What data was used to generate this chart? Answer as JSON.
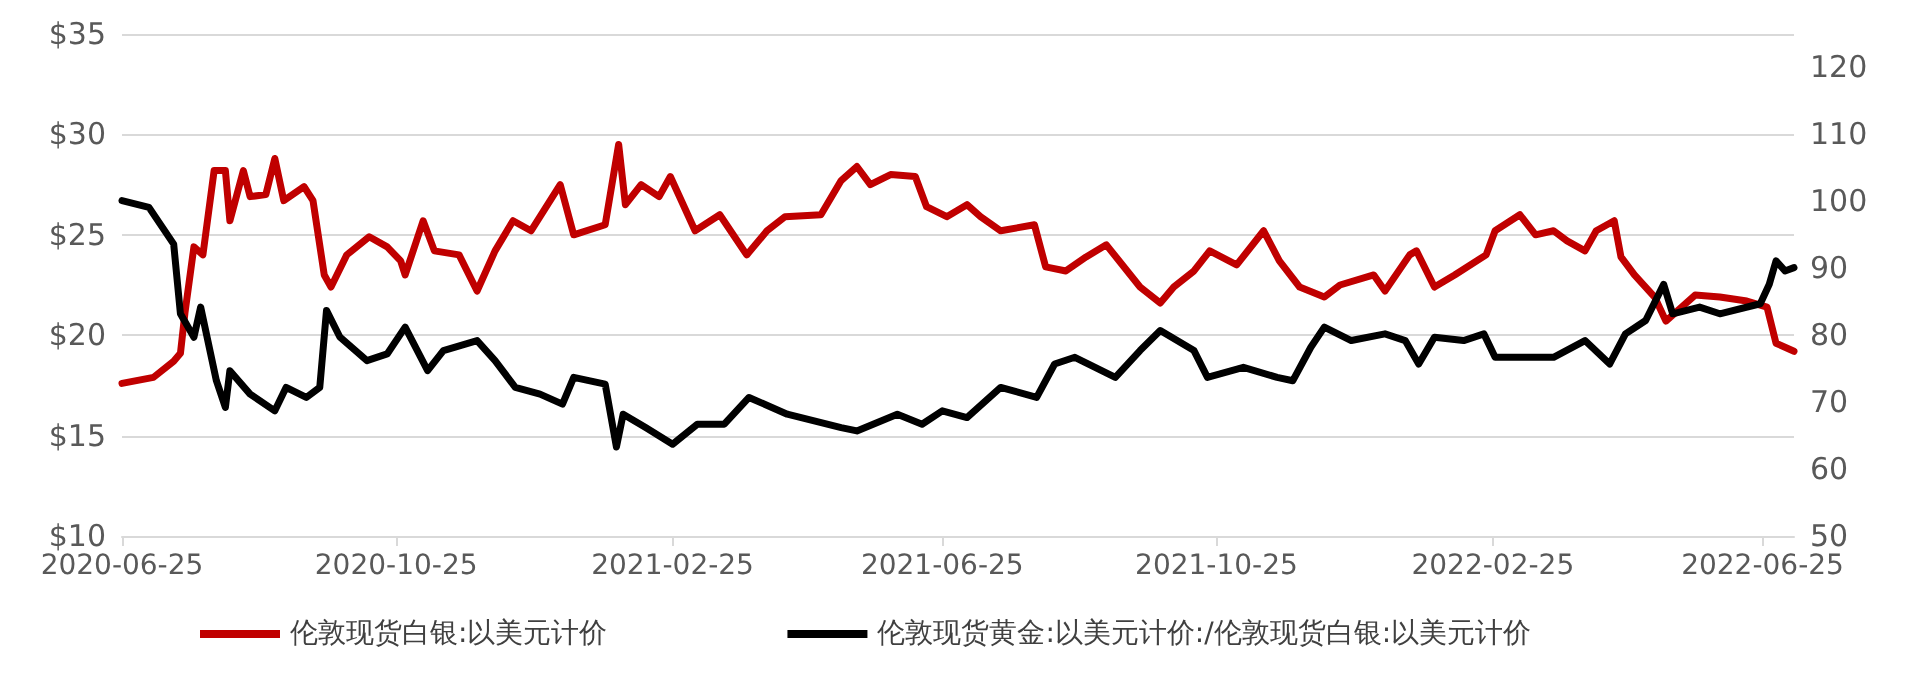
{
  "chart_data": {
    "type": "line",
    "x": [
      "2020-06-25",
      "2020-07-09",
      "2020-07-18",
      "2020-07-21",
      "2020-07-23",
      "2020-07-27",
      "2020-07-31",
      "2020-08-05",
      "2020-08-10",
      "2020-08-12",
      "2020-08-18",
      "2020-08-21",
      "2020-08-28",
      "2020-09-01",
      "2020-09-05",
      "2020-09-14",
      "2020-09-18",
      "2020-09-23",
      "2020-09-26",
      "2020-10-03",
      "2020-10-13",
      "2020-10-21",
      "2020-10-27",
      "2020-10-29",
      "2020-11-06",
      "2020-11-11",
      "2020-11-22",
      "2020-11-30",
      "2020-12-08",
      "2020-12-16",
      "2020-12-24",
      "2021-01-06",
      "2021-01-12",
      "2021-01-26",
      "2021-02-01",
      "2021-02-04",
      "2021-02-11",
      "2021-02-19",
      "2021-02-24",
      "2021-03-07",
      "2021-03-18",
      "2021-03-30",
      "2021-04-08",
      "2021-04-16",
      "2021-05-02",
      "2021-05-11",
      "2021-05-18",
      "2021-05-24",
      "2021-06-02",
      "2021-06-13",
      "2021-06-18",
      "2021-06-27",
      "2021-07-06",
      "2021-07-12",
      "2021-07-21",
      "2021-08-05",
      "2021-08-10",
      "2021-08-19",
      "2021-08-28",
      "2021-09-06",
      "2021-09-21",
      "2021-09-30",
      "2021-10-06",
      "2021-10-15",
      "2021-10-22",
      "2021-11-03",
      "2021-11-15",
      "2021-11-22",
      "2021-12-01",
      "2021-12-12",
      "2021-12-19",
      "2022-01-03",
      "2022-01-08",
      "2022-01-19",
      "2022-01-22",
      "2022-01-30",
      "2022-02-08",
      "2022-02-22",
      "2022-02-26",
      "2022-03-09",
      "2022-03-16",
      "2022-03-24",
      "2022-03-30",
      "2022-04-07",
      "2022-04-12",
      "2022-04-20",
      "2022-04-23",
      "2022-04-29",
      "2022-05-08",
      "2022-05-13",
      "2022-05-26",
      "2022-06-06",
      "2022-06-18",
      "2022-06-27",
      "2022-07-01",
      "2022-07-09"
    ],
    "series": [
      {
        "name": "伦敦现货白银:以美元计价",
        "color": "#c00000",
        "values": [
          17.6,
          17.9,
          18.7,
          19.1,
          21.1,
          24.4,
          24.0,
          28.2,
          28.2,
          25.7,
          28.2,
          26.9,
          27.0,
          28.8,
          26.7,
          27.4,
          26.7,
          23.0,
          22.4,
          24.0,
          24.9,
          24.4,
          23.7,
          23.0,
          25.7,
          24.2,
          24.0,
          22.2,
          24.2,
          25.7,
          25.2,
          27.5,
          25.0,
          25.5,
          29.5,
          26.5,
          27.5,
          26.9,
          27.9,
          25.2,
          26.0,
          24.0,
          25.2,
          25.9,
          26.0,
          27.7,
          28.4,
          27.5,
          28.0,
          27.9,
          26.4,
          25.9,
          26.5,
          25.9,
          25.2,
          25.5,
          23.4,
          23.2,
          23.9,
          24.5,
          22.4,
          21.6,
          22.4,
          23.2,
          24.2,
          23.5,
          25.2,
          23.7,
          22.4,
          21.9,
          22.5,
          23.0,
          22.2,
          24.0,
          24.2,
          22.4,
          23.0,
          24.0,
          25.2,
          26.0,
          25.0,
          25.2,
          24.7,
          24.2,
          25.2,
          25.7,
          23.9,
          23.0,
          21.9,
          20.7,
          22.0,
          21.9,
          21.7,
          21.4,
          19.6,
          19.2
        ]
      },
      {
        "name": "伦敦现货黄金:以美元计价:/伦敦现货白银:以美元计价",
        "color": "#000000",
        "axis": "y2",
        "x": [
          "2020-06-25",
          "2020-07-07",
          "2020-07-18",
          "2020-07-21",
          "2020-07-27",
          "2020-07-30",
          "2020-08-06",
          "2020-08-10",
          "2020-08-12",
          "2020-08-21",
          "2020-09-01",
          "2020-09-06",
          "2020-09-15",
          "2020-09-21",
          "2020-09-24",
          "2020-09-30",
          "2020-10-12",
          "2020-10-21",
          "2020-10-29",
          "2020-11-08",
          "2020-11-15",
          "2020-11-30",
          "2020-12-08",
          "2020-12-17",
          "2020-12-28",
          "2021-01-07",
          "2021-01-12",
          "2021-01-26",
          "2021-01-31",
          "2021-02-03",
          "2021-02-13",
          "2021-02-25",
          "2021-03-08",
          "2021-03-20",
          "2021-03-31",
          "2021-04-17",
          "2021-05-11",
          "2021-05-18",
          "2021-06-05",
          "2021-06-16",
          "2021-06-25",
          "2021-07-06",
          "2021-07-21",
          "2021-08-06",
          "2021-08-14",
          "2021-08-23",
          "2021-09-10",
          "2021-09-21",
          "2021-09-30",
          "2021-10-15",
          "2021-10-21",
          "2021-11-06",
          "2021-11-21",
          "2021-11-28",
          "2021-12-06",
          "2021-12-12",
          "2021-12-24",
          "2022-01-08",
          "2022-01-17",
          "2022-01-23",
          "2022-01-30",
          "2022-02-12",
          "2022-02-21",
          "2022-02-26",
          "2022-03-09",
          "2022-03-24",
          "2022-04-07",
          "2022-04-18",
          "2022-04-25",
          "2022-05-04",
          "2022-05-12",
          "2022-05-16",
          "2022-05-28",
          "2022-06-06",
          "2022-06-24",
          "2022-06-28",
          "2022-07-01",
          "2022-07-05",
          "2022-07-09"
        ],
        "values": [
          100.1,
          99.1,
          93.6,
          83.2,
          79.7,
          84.2,
          73.2,
          69.2,
          74.7,
          71.2,
          68.7,
          72.2,
          70.7,
          72.2,
          83.7,
          79.7,
          76.2,
          77.2,
          81.2,
          74.7,
          77.7,
          79.2,
          76.2,
          72.2,
          71.2,
          69.7,
          73.7,
          72.7,
          63.3,
          68.2,
          66.2,
          63.7,
          66.7,
          66.7,
          70.7,
          68.2,
          66.2,
          65.7,
          68.2,
          66.7,
          68.7,
          67.7,
          72.2,
          70.7,
          75.7,
          76.7,
          73.7,
          77.7,
          80.7,
          77.7,
          73.7,
          75.2,
          73.7,
          73.2,
          78.2,
          81.2,
          79.2,
          80.2,
          79.2,
          75.7,
          79.7,
          79.2,
          80.2,
          76.7,
          76.7,
          76.7,
          79.2,
          75.7,
          80.2,
          82.2,
          87.6,
          83.2,
          84.2,
          83.2,
          84.7,
          87.6,
          91.1,
          89.6,
          90.1
        ]
      }
    ],
    "xlim": [
      "2020-06-25",
      "2022-07-09"
    ],
    "xticks": [
      "2020-06-25",
      "2020-10-25",
      "2021-02-25",
      "2021-06-25",
      "2021-10-25",
      "2022-02-25",
      "2022-06-25"
    ],
    "ylim": [
      10,
      35
    ],
    "yticks": [
      {
        "value": 10,
        "label": "$10"
      },
      {
        "value": 15,
        "label": "$15"
      },
      {
        "value": 20,
        "label": "$20"
      },
      {
        "value": 25,
        "label": "$25"
      },
      {
        "value": 30,
        "label": "$30"
      },
      {
        "value": 35,
        "label": "$35"
      }
    ],
    "y2lim": [
      50,
      125
    ],
    "y2ticks": [
      50,
      60,
      70,
      80,
      90,
      100,
      110,
      120
    ],
    "grid": "y",
    "legend": "bottom",
    "marker": "none",
    "line_style": "solid"
  }
}
